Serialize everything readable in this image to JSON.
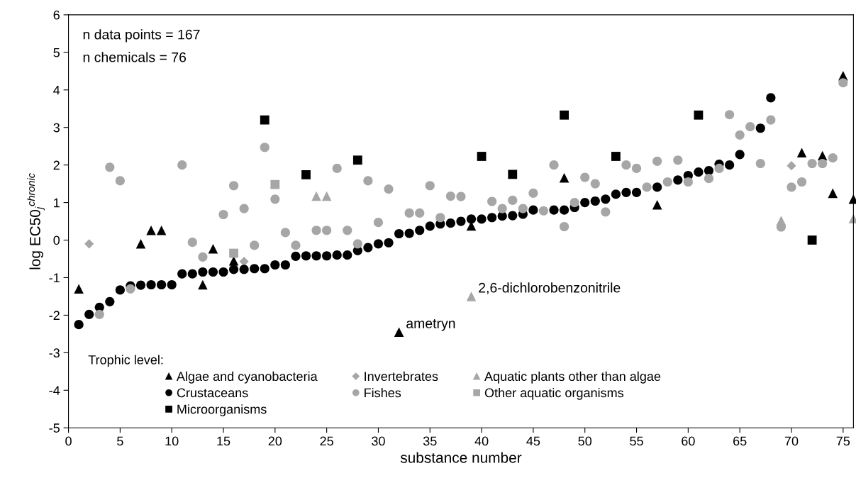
{
  "chart_data": {
    "type": "scatter",
    "xlabel": "substance number",
    "ylabel": "log EC50$_{j}$$^{chronic}$",
    "legend_title": "Trophic level:",
    "xlim": [
      0,
      76
    ],
    "ylim": [
      -5,
      6
    ],
    "xticks": [
      0,
      5,
      10,
      15,
      20,
      25,
      30,
      35,
      40,
      45,
      50,
      55,
      60,
      65,
      70,
      75
    ],
    "yticks": [
      -5,
      -4,
      -3,
      -2,
      -1,
      0,
      1,
      2,
      3,
      4,
      5,
      6
    ],
    "grid": false,
    "legend": "bottom left",
    "annotations": [
      "n data points = 167",
      "n chemicals = 76",
      {
        "text": "ametryn",
        "x": 32,
        "y": -2.45
      },
      {
        "text": "2,6-dichlorobenzonitrile",
        "x": 39,
        "y": -1.5
      }
    ],
    "series": [
      {
        "name": "Algae and cyanobacteria",
        "color": "#000000",
        "marker": "triangle",
        "x": [
          1,
          7,
          8,
          9,
          13,
          14,
          16,
          32,
          39,
          48,
          57,
          71,
          73,
          74,
          75,
          76
        ],
        "values": [
          -1.3,
          -0.1,
          0.26,
          0.26,
          -1.19,
          -0.23,
          -0.55,
          -2.45,
          0.38,
          1.66,
          0.94,
          2.33,
          2.25,
          1.25,
          4.38,
          1.09
        ]
      },
      {
        "name": "Invertebrates",
        "color": "#a6a6a6",
        "marker": "diamond",
        "x": [
          2,
          17,
          70
        ],
        "values": [
          -0.1,
          -0.57,
          1.98
        ]
      },
      {
        "name": "Aquatic plants other than algae",
        "color": "#a6a6a6",
        "marker": "triangle",
        "x": [
          24,
          25,
          39,
          69,
          76
        ],
        "values": [
          1.17,
          1.17,
          -1.5,
          0.52,
          0.57
        ]
      },
      {
        "name": "Crustaceans",
        "color": "#000000",
        "marker": "circle",
        "x": [
          1,
          2,
          3,
          4,
          5,
          6,
          7,
          8,
          9,
          10,
          11,
          12,
          13,
          14,
          15,
          16,
          17,
          18,
          19,
          20,
          21,
          22,
          23,
          24,
          25,
          26,
          27,
          28,
          29,
          30,
          31,
          32,
          33,
          34,
          35,
          36,
          37,
          38,
          39,
          40,
          41,
          42,
          43,
          44,
          45,
          47,
          48,
          49,
          50,
          51,
          52,
          53,
          54,
          55,
          57,
          59,
          60,
          61,
          62,
          63,
          64,
          65,
          67,
          68
        ],
        "values": [
          -2.25,
          -1.98,
          -1.79,
          -1.64,
          -1.33,
          -1.22,
          -1.2,
          -1.19,
          -1.19,
          -1.19,
          -0.9,
          -0.9,
          -0.85,
          -0.85,
          -0.85,
          -0.78,
          -0.78,
          -0.76,
          -0.76,
          -0.66,
          -0.66,
          -0.43,
          -0.42,
          -0.42,
          -0.42,
          -0.4,
          -0.4,
          -0.28,
          -0.2,
          -0.1,
          -0.07,
          0.17,
          0.18,
          0.26,
          0.37,
          0.43,
          0.45,
          0.5,
          0.56,
          0.56,
          0.6,
          0.64,
          0.65,
          0.69,
          0.8,
          0.8,
          0.8,
          0.87,
          1.0,
          1.04,
          1.09,
          1.22,
          1.27,
          1.27,
          1.41,
          1.6,
          1.72,
          1.81,
          1.85,
          2.02,
          2.0,
          2.28,
          2.98,
          3.79
        ]
      },
      {
        "name": "Fishes",
        "color": "#a6a6a6",
        "marker": "circle",
        "x": [
          3,
          4,
          5,
          6,
          11,
          12,
          13,
          15,
          16,
          17,
          18,
          19,
          20,
          21,
          22,
          24,
          25,
          26,
          27,
          28,
          29,
          30,
          31,
          33,
          34,
          35,
          36,
          37,
          38,
          41,
          42,
          43,
          44,
          45,
          46,
          47,
          48,
          49,
          50,
          51,
          52,
          54,
          55,
          56,
          57,
          58,
          59,
          60,
          62,
          63,
          64,
          65,
          66,
          67,
          68,
          69,
          70,
          71,
          72,
          73,
          74,
          75
        ],
        "values": [
          -1.98,
          1.94,
          1.58,
          -1.3,
          2.0,
          -0.06,
          -0.45,
          0.68,
          1.45,
          0.84,
          -0.14,
          2.47,
          1.09,
          0.2,
          -0.14,
          0.26,
          0.26,
          1.91,
          0.26,
          -0.1,
          1.58,
          0.47,
          1.36,
          0.72,
          0.72,
          1.45,
          0.6,
          1.17,
          1.16,
          1.03,
          0.84,
          1.06,
          0.84,
          1.25,
          0.78,
          2.0,
          0.36,
          1.0,
          1.67,
          1.5,
          0.75,
          2.0,
          1.91,
          1.41,
          2.1,
          1.55,
          2.13,
          1.55,
          1.64,
          1.91,
          3.34,
          2.8,
          3.02,
          2.04,
          3.2,
          0.35,
          1.41,
          1.55,
          2.04,
          2.04,
          2.19,
          4.19
        ]
      },
      {
        "name": "Other aquatic organisms",
        "color": "#a6a6a6",
        "marker": "square",
        "x": [
          16,
          20
        ],
        "values": [
          -0.35,
          1.48
        ]
      },
      {
        "name": "Microorganisms",
        "color": "#000000",
        "marker": "square",
        "x": [
          19,
          23,
          28,
          40,
          43,
          48,
          53,
          61,
          72
        ],
        "values": [
          3.2,
          1.74,
          2.13,
          2.23,
          1.75,
          3.33,
          2.23,
          3.33,
          0.0
        ]
      }
    ]
  }
}
